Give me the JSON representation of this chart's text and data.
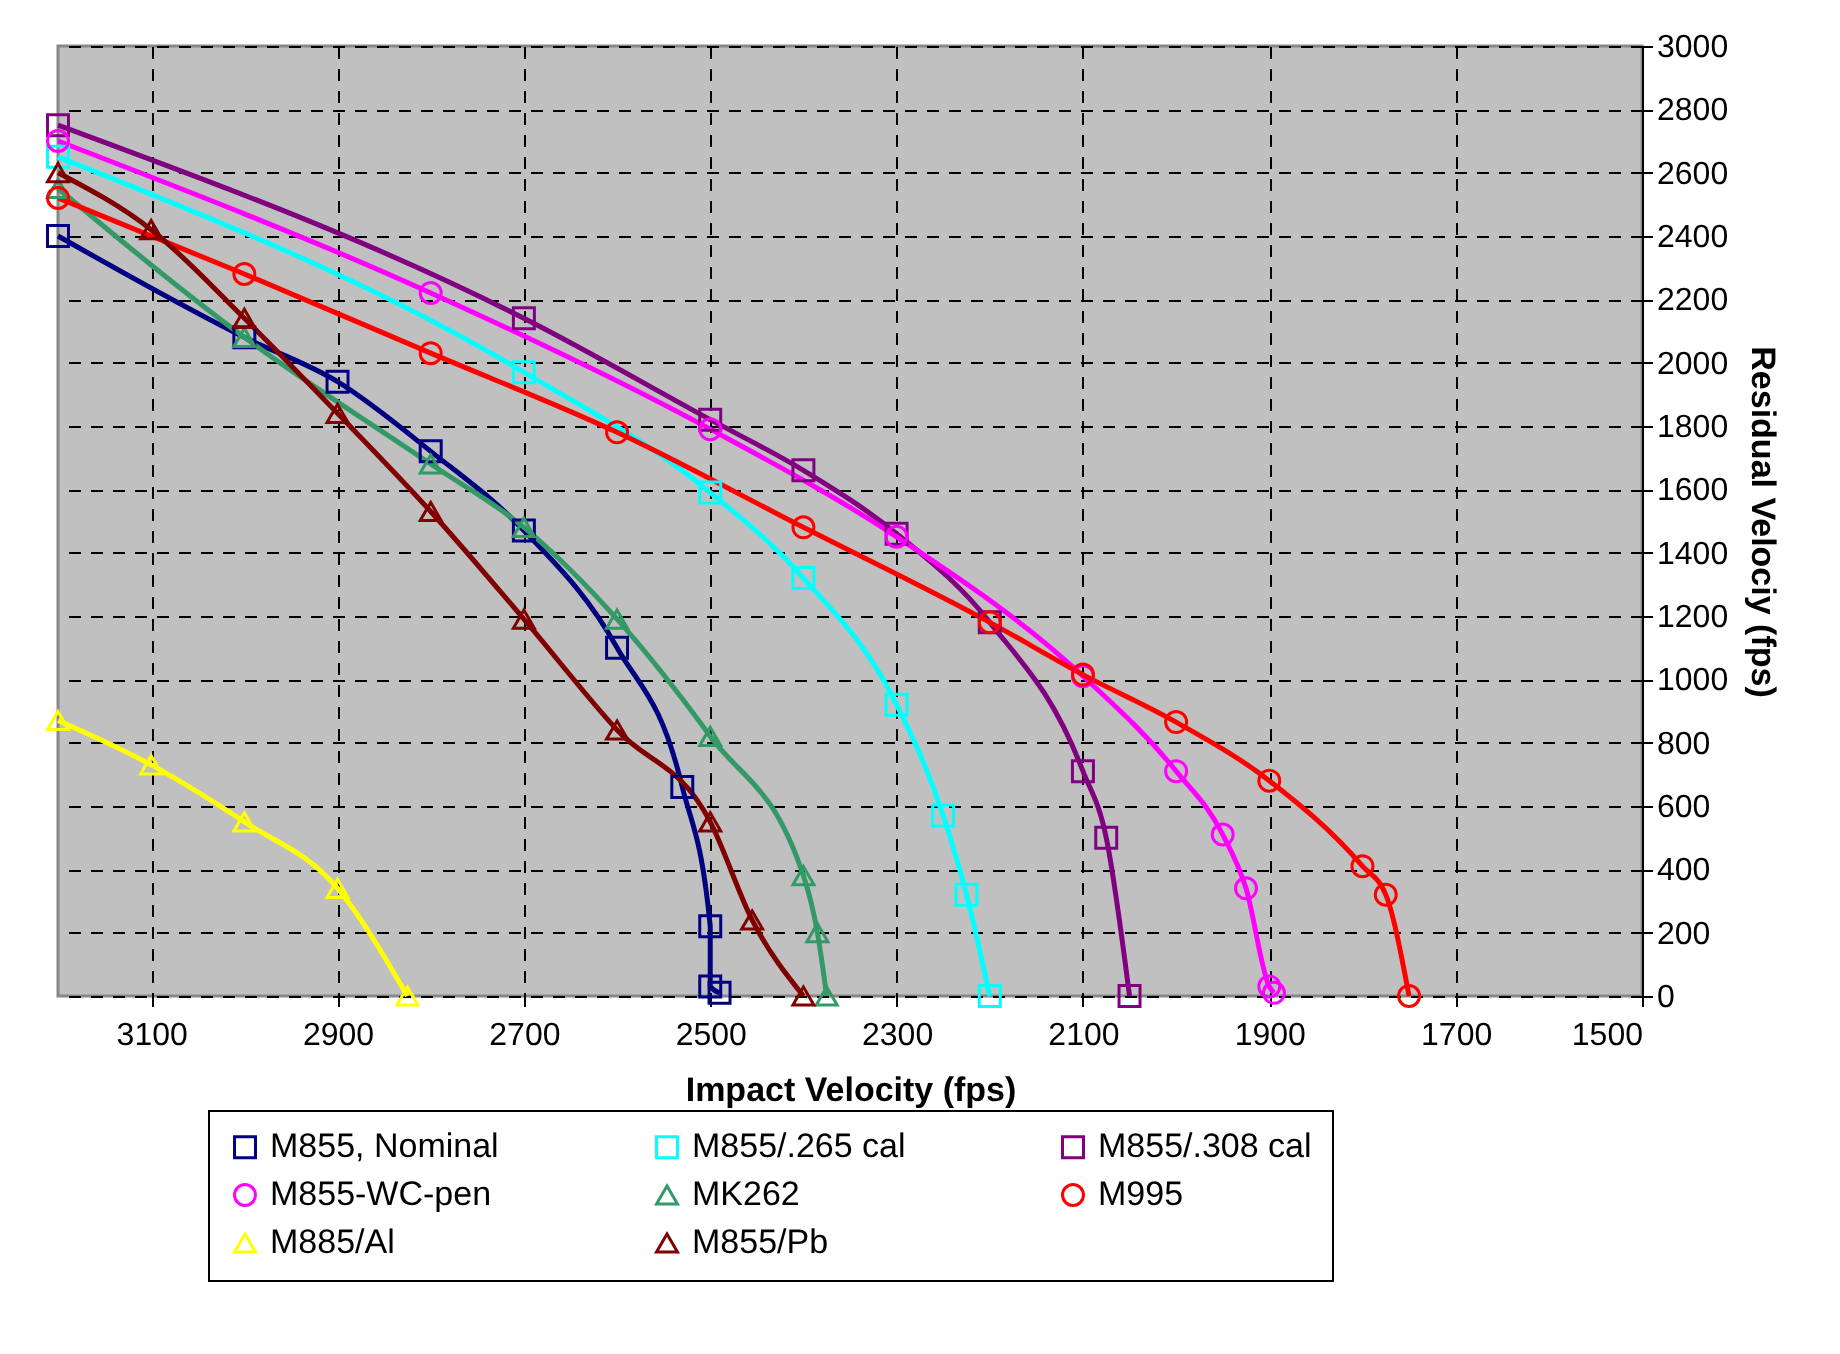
{
  "chart_data": {
    "type": "line",
    "xlabel": "Impact Velocity (fps)",
    "ylabel": "Residual Velociy (fps)",
    "xlim": [
      3200,
      1500
    ],
    "xticks": [
      3100,
      2900,
      2700,
      2500,
      2300,
      2100,
      1900,
      1700,
      1500
    ],
    "ylim": [
      0,
      3000
    ],
    "yticks": [
      0,
      200,
      400,
      600,
      800,
      1000,
      1200,
      1400,
      1600,
      1800,
      2000,
      2200,
      2400,
      2600,
      2800,
      3000
    ],
    "grid": true,
    "legend": "bottom",
    "line_style": "solid",
    "series": [
      {
        "name": "M855, Nominal",
        "color": "#000080",
        "marker": "square",
        "x": [
          3200,
          3000,
          2900,
          2800,
          2700,
          2600,
          2530,
          2500,
          2500,
          2490
        ],
        "values": [
          2400,
          2080,
          1940,
          1720,
          1470,
          1100,
          660,
          220,
          30,
          10
        ]
      },
      {
        "name": "M855/.265 cal",
        "color": "#00ffff",
        "marker": "square",
        "x": [
          3200,
          2700,
          2500,
          2400,
          2300,
          2250,
          2225,
          2200
        ],
        "values": [
          2650,
          1970,
          1590,
          1320,
          920,
          570,
          320,
          0
        ]
      },
      {
        "name": "M855/.308 cal",
        "color": "#800080",
        "marker": "square",
        "x": [
          3200,
          2700,
          2500,
          2400,
          2300,
          2200,
          2100,
          2075,
          2050
        ],
        "values": [
          2750,
          2140,
          1820,
          1660,
          1460,
          1180,
          710,
          500,
          0
        ]
      },
      {
        "name": "M855-WC-pen",
        "color": "#ff00ff",
        "marker": "circle",
        "x": [
          3200,
          2800,
          2500,
          2300,
          2100,
          2000,
          1950,
          1925,
          1900,
          1895
        ],
        "values": [
          2700,
          2220,
          1790,
          1450,
          1010,
          710,
          510,
          340,
          30,
          10
        ]
      },
      {
        "name": "MK262",
        "color": "#339966",
        "marker": "triangle",
        "x": [
          3200,
          3000,
          2800,
          2700,
          2600,
          2500,
          2400,
          2385,
          2375
        ],
        "values": [
          2550,
          2080,
          1680,
          1480,
          1190,
          820,
          380,
          200,
          0
        ]
      },
      {
        "name": "M995",
        "color": "#ff0000",
        "marker": "circle",
        "x": [
          3200,
          3000,
          2800,
          2600,
          2400,
          2200,
          2100,
          2000,
          1900,
          1800,
          1775,
          1750
        ],
        "values": [
          2520,
          2280,
          2030,
          1780,
          1480,
          1180,
          1015,
          865,
          680,
          410,
          320,
          0
        ]
      },
      {
        "name": "M885/Al",
        "color": "#ffff00",
        "marker": "triangle",
        "x": [
          3200,
          3100,
          3000,
          2900,
          2825
        ],
        "values": [
          870,
          730,
          550,
          340,
          0
        ]
      },
      {
        "name": "M855/Pb",
        "color": "#800000",
        "marker": "triangle",
        "x": [
          3200,
          3100,
          3000,
          2900,
          2800,
          2700,
          2600,
          2500,
          2455,
          2400
        ],
        "values": [
          2600,
          2420,
          2140,
          1840,
          1530,
          1190,
          840,
          550,
          240,
          0
        ]
      }
    ]
  }
}
